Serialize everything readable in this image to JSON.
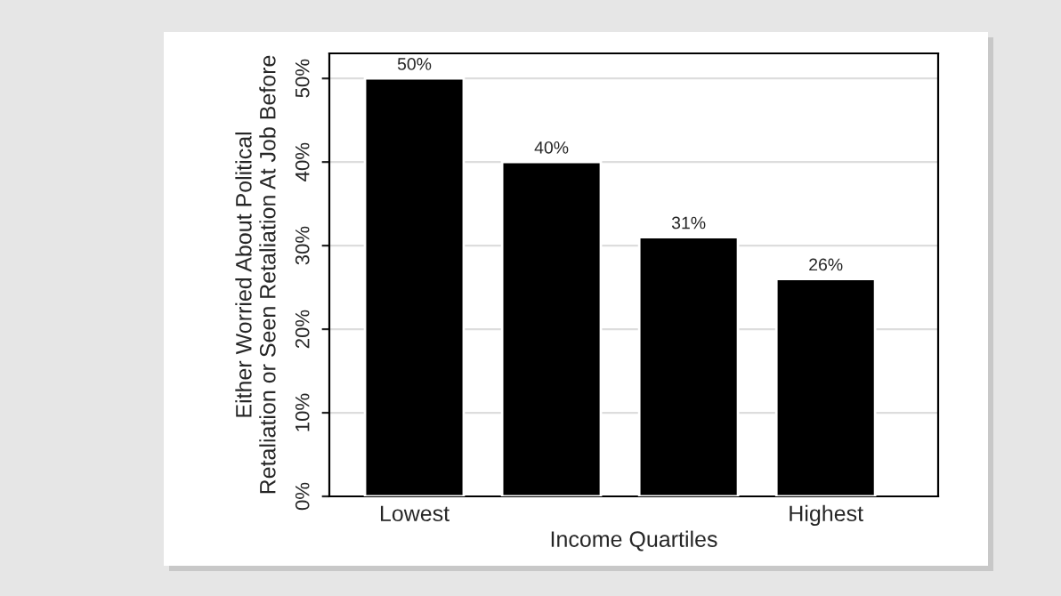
{
  "chart_data": {
    "type": "bar",
    "xlabel": "Income Quartiles",
    "ylabel": "Either Worried About Political\nRetaliation or Seen Retaliation At Job Before",
    "categories": [
      "Lowest",
      null,
      null,
      "Highest"
    ],
    "values": [
      50,
      40,
      31,
      26
    ],
    "value_labels": [
      "50%",
      "40%",
      "31%",
      "26%"
    ],
    "color": "#000000",
    "ylim": [
      0,
      53
    ],
    "yticks": [
      {
        "value": 0,
        "label": "0%"
      },
      {
        "value": 10,
        "label": "10%"
      },
      {
        "value": 20,
        "label": "20%"
      },
      {
        "value": 30,
        "label": "30%"
      },
      {
        "value": 40,
        "label": "40%"
      },
      {
        "value": 50,
        "label": "50%"
      }
    ],
    "grid": "y",
    "legend": false
  }
}
